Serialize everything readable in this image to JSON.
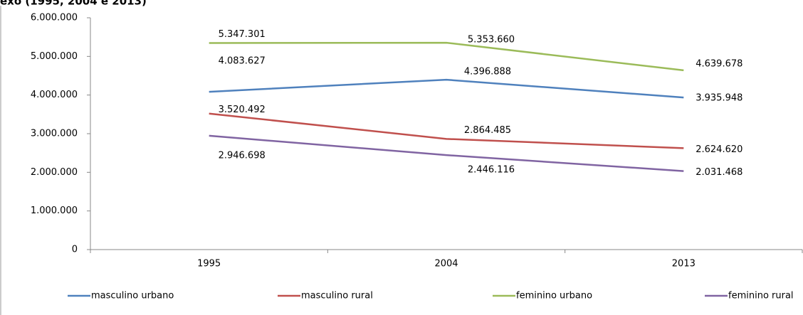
{
  "chart_data": {
    "type": "line",
    "title": "exo (1995, 2004 e 2013)",
    "categories": [
      "1995",
      "2004",
      "2013"
    ],
    "series": [
      {
        "name": "masculino urbano",
        "color": "#4f81bd",
        "values": [
          4083627,
          4396888,
          3935948
        ],
        "value_labels": [
          "4.083.627",
          "4.396.888",
          "3.935.948"
        ]
      },
      {
        "name": "masculino rural",
        "color": "#c0504d",
        "values": [
          3520492,
          2864485,
          2624620
        ],
        "value_labels": [
          "3.520.492",
          "2.864.485",
          "2.624.620"
        ]
      },
      {
        "name": "feminino urbano",
        "color": "#9bbb59",
        "values": [
          5347301,
          5353660,
          4639678
        ],
        "value_labels": [
          "5.347.301",
          "5.353.660",
          "4.639.678"
        ]
      },
      {
        "name": "feminino rural",
        "color": "#8064a2",
        "values": [
          2946698,
          2446116,
          2031468
        ],
        "value_labels": [
          "2.946.698",
          "2.446.116",
          "2.031.468"
        ]
      }
    ],
    "ylim": [
      0,
      6000000
    ],
    "yticks": [
      0,
      {
        "value": 1000000,
        "label": "1.000.000"
      },
      {
        "value": 2000000,
        "label": "2.000.000"
      },
      {
        "value": 3000000,
        "label": "3.000.000"
      },
      {
        "value": 4000000,
        "label": "4.000.000"
      },
      {
        "value": 5000000,
        "label": "5.000.000"
      },
      {
        "value": 6000000,
        "label": "6.000.000"
      }
    ],
    "legend": "bottom"
  }
}
